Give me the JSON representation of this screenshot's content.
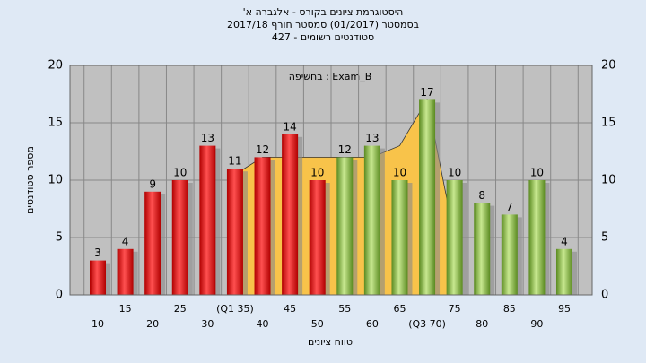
{
  "chart_data": {
    "type": "bar",
    "title": "היסטוגרמת ציונים בקורס - אלגברה א'",
    "subtitle": "בסמסטר (01/2017) סמסטר חורף 2017/18",
    "subtitle2": "סטודנטים רשומים - 427",
    "annotation": "בחשיפה : Exam_B",
    "y_label": "מספר סטודנטים",
    "x_label": "טווח ציונים",
    "categories": [
      "10",
      "15",
      "20",
      "25",
      "30",
      "(Q1 35)",
      "40",
      "45",
      "50",
      "55",
      "60",
      "65",
      "(Q3 70)",
      "75",
      "80",
      "85",
      "90",
      "95"
    ],
    "values": [
      3,
      4,
      9,
      10,
      13,
      11,
      12,
      14,
      10,
      12,
      13,
      10,
      17,
      10,
      8,
      7,
      10,
      4
    ],
    "colors": [
      "#e02020",
      "#e02020",
      "#e02020",
      "#e02020",
      "#e02020",
      "#e02020",
      "#e02020",
      "#e02020",
      "#e02020",
      "#8cc040",
      "#8cc040",
      "#8cc040",
      "#8cc040",
      "#8cc040",
      "#8cc040",
      "#8cc040",
      "#8cc040",
      "#8cc040"
    ],
    "area": {
      "color": "#f8c34a",
      "values": [
        null,
        null,
        null,
        null,
        null,
        10.5,
        12,
        12,
        12,
        12,
        12,
        13,
        17,
        5,
        null,
        null,
        null,
        null
      ]
    },
    "ylim": [
      0,
      20
    ],
    "yticks": [
      0,
      5,
      10,
      15,
      20
    ],
    "y2lim": [
      0,
      20
    ],
    "y2ticks": [
      0,
      5,
      10,
      15,
      20
    ],
    "grid": true
  }
}
